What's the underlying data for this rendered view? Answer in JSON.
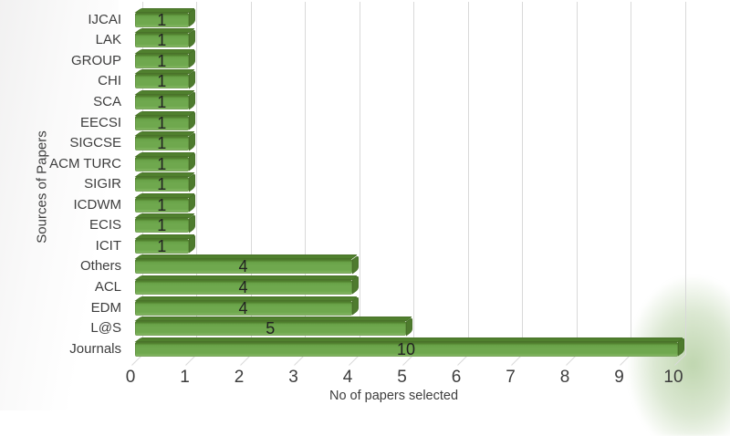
{
  "chart_data": {
    "type": "bar",
    "orientation": "horizontal",
    "title": "",
    "xlabel": "No of papers selected",
    "ylabel": "Sources of Papers",
    "categories": [
      "IJCAI",
      "LAK",
      "GROUP",
      "CHI",
      "SCA",
      "EECSI",
      "SIGCSE",
      "ACM TURC",
      "SIGIR",
      "ICDWM",
      "ECIS",
      "ICIT",
      "Others",
      "ACL",
      "EDM",
      "L@S",
      "Journals"
    ],
    "values": [
      1,
      1,
      1,
      1,
      1,
      1,
      1,
      1,
      1,
      1,
      1,
      1,
      4,
      4,
      4,
      5,
      10
    ],
    "xlim": [
      0,
      10
    ],
    "xticks": [
      0,
      1,
      2,
      3,
      4,
      5,
      6,
      7,
      8,
      9,
      10
    ],
    "grid": true,
    "legend": false,
    "bar_style": "3d",
    "value_labels": "inside-center",
    "colors": {
      "bar_face": "#6FA84E",
      "bar_top": "#50802E",
      "bar_side": "#4E7B2E",
      "gridline": "#D9D9D9",
      "axis_text": "#3D3D3D",
      "value_label_text": "#222222",
      "background": "#FFFFFF",
      "corner_glow": "#80AD60"
    }
  }
}
